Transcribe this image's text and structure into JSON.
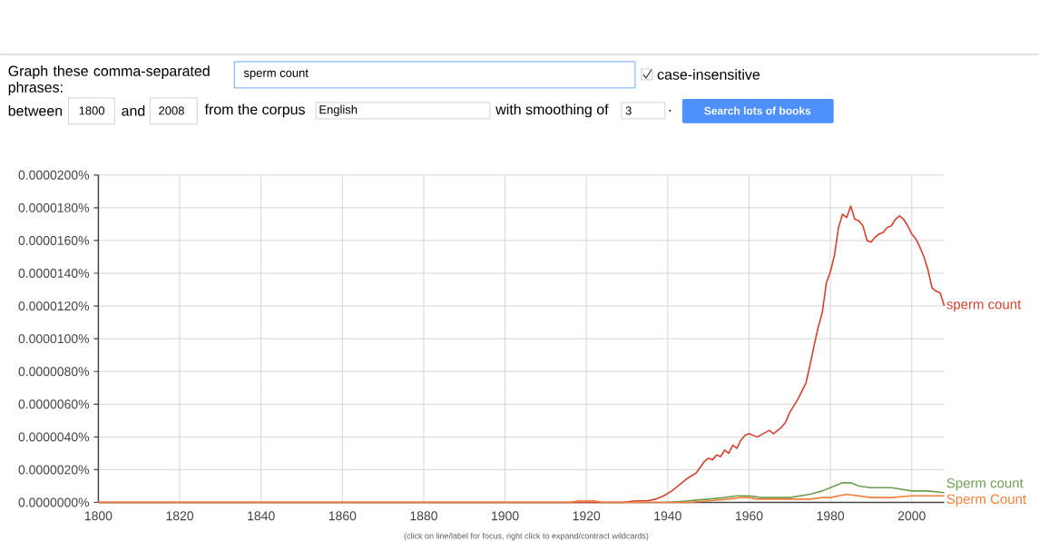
{
  "chart_data": {
    "type": "line",
    "annotations": [
      "Graph these comma-separated phrases:",
      "sperm count",
      "case-insensitive",
      "between",
      "1800",
      "and",
      "2008",
      "from the corpus",
      "English",
      "with smoothing of",
      "3",
      ".",
      "Search lots of books",
      "(click on line/label for focus, right click to expand/contract wildcards)"
    ],
    "series": [
      {
        "name": "sperm count",
        "color": "#d6412f",
        "x": [
          1800,
          1929,
          1932,
          1935,
          1937,
          1939,
          1941,
          1943,
          1945,
          1947,
          1949,
          1950,
          1951,
          1952,
          1953,
          1954,
          1955,
          1956,
          1957,
          1958,
          1959,
          1960,
          1962,
          1965,
          1966,
          1968,
          1969,
          1970,
          1972,
          1974,
          1975,
          1976,
          1977,
          1978,
          1979,
          1980,
          1981,
          1982,
          1983,
          1984,
          1985,
          1986,
          1987,
          1988,
          1989,
          1990,
          1991,
          1992,
          1993,
          1994,
          1995,
          1996,
          1997,
          1998,
          1999,
          2000,
          2001,
          2002,
          2003,
          2004,
          2005,
          2006,
          2007,
          2008
        ],
        "values": [
          0,
          0,
          1e-07,
          1e-07,
          2e-07,
          4e-07,
          7e-07,
          1.1e-06,
          1.5e-06,
          1.8e-06,
          2.5e-06,
          2.7e-06,
          2.6e-06,
          2.9e-06,
          2.8e-06,
          3.2e-06,
          3e-06,
          3.5e-06,
          3.3e-06,
          3.8e-06,
          4.1e-06,
          4.2e-06,
          4e-06,
          4.4e-06,
          4.2e-06,
          4.6e-06,
          4.9e-06,
          5.5e-06,
          6.3e-06,
          7.3e-06,
          8.4e-06,
          9.6e-06,
          1.07e-05,
          1.16e-05,
          1.34e-05,
          1.41e-05,
          1.51e-05,
          1.68e-05,
          1.76e-05,
          1.74e-05,
          1.81e-05,
          1.73e-05,
          1.72e-05,
          1.69e-05,
          1.6e-05,
          1.59e-05,
          1.62e-05,
          1.64e-05,
          1.65e-05,
          1.68e-05,
          1.69e-05,
          1.73e-05,
          1.75e-05,
          1.73e-05,
          1.69e-05,
          1.64e-05,
          1.61e-05,
          1.56e-05,
          1.5e-05,
          1.42e-05,
          1.31e-05,
          1.29e-05,
          1.28e-05,
          1.2e-05
        ]
      },
      {
        "name": "Sperm count",
        "color": "#6e9e52",
        "x": [
          1940,
          1945,
          1950,
          1954,
          1957,
          1960,
          1963,
          1965,
          1970,
          1975,
          1978,
          1980,
          1983,
          1985,
          1987,
          1990,
          1995,
          2000,
          2004,
          2008
        ],
        "values": [
          0,
          1e-07,
          2e-07,
          3e-07,
          4e-07,
          4e-07,
          3e-07,
          3e-07,
          3e-07,
          5e-07,
          7e-07,
          9e-07,
          1.2e-06,
          1.2e-06,
          1e-06,
          9e-07,
          9e-07,
          7e-07,
          7e-07,
          6e-07
        ]
      },
      {
        "name": "Sperm Count",
        "color": "#f0803c",
        "x": [
          1800,
          1916,
          1918,
          1922,
          1924,
          1945,
          1950,
          1955,
          1958,
          1960,
          1962,
          1966,
          1970,
          1975,
          1978,
          1980,
          1984,
          1987,
          1990,
          1995,
          2000,
          2005,
          2008
        ],
        "values": [
          0,
          0,
          1e-07,
          1e-07,
          0,
          0,
          1e-07,
          2e-07,
          3e-07,
          3e-07,
          2e-07,
          2e-07,
          2e-07,
          2e-07,
          3e-07,
          3e-07,
          5e-07,
          4e-07,
          3e-07,
          3e-07,
          4e-07,
          4e-07,
          4e-07
        ]
      }
    ],
    "xlim": [
      1800,
      2008
    ],
    "xticks": [
      1800,
      1820,
      1840,
      1860,
      1880,
      1900,
      1920,
      1940,
      1960,
      1980,
      2000
    ],
    "ylim": [
      0,
      2e-05
    ],
    "yticks": [
      {
        "value": 0,
        "label": "0.0000000%"
      },
      {
        "value": 2e-06,
        "label": "0.0000020%"
      },
      {
        "value": 4e-06,
        "label": "0.0000040%"
      },
      {
        "value": 6e-06,
        "label": "0.0000060%"
      },
      {
        "value": 8e-06,
        "label": "0.0000080%"
      },
      {
        "value": 1e-05,
        "label": "0.0000100%"
      },
      {
        "value": 1.2e-05,
        "label": "0.0000120%"
      },
      {
        "value": 1.4e-05,
        "label": "0.0000140%"
      },
      {
        "value": 1.6e-05,
        "label": "0.0000160%"
      },
      {
        "value": 1.8e-05,
        "label": "0.0000180%"
      },
      {
        "value": 2e-05,
        "label": "0.0000200%"
      }
    ],
    "grid": true,
    "marker": "none",
    "line_style": "solid"
  }
}
